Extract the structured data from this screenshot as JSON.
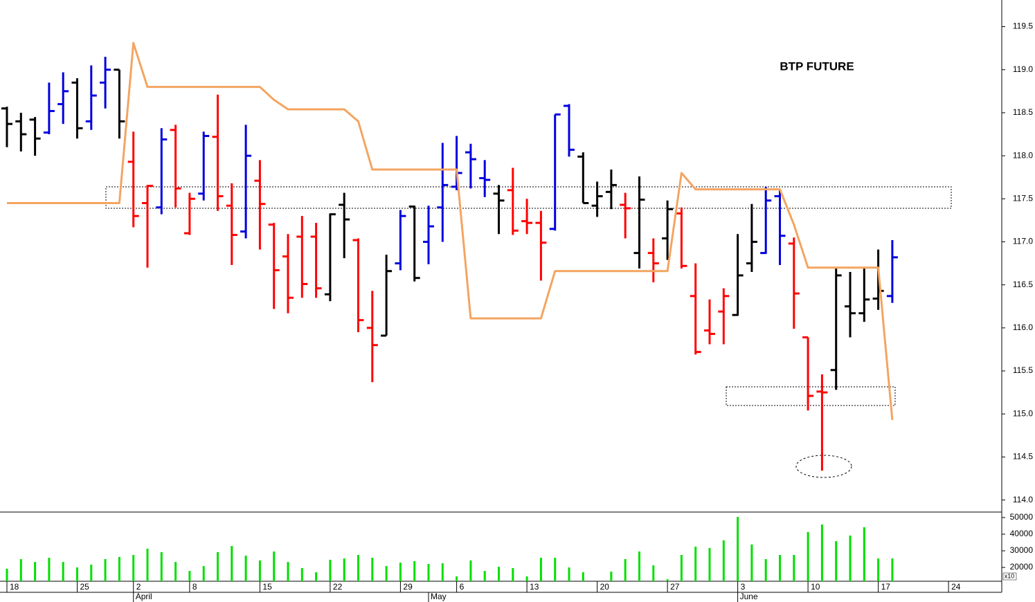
{
  "chart_data": {
    "type": "ohlc",
    "title": "BTP FUTURE",
    "categories": [
      "18",
      null,
      null,
      null,
      null,
      "25",
      null,
      null,
      null,
      "2",
      null,
      null,
      null,
      "8",
      null,
      null,
      null,
      null,
      "15",
      null,
      null,
      null,
      null,
      "22",
      null,
      null,
      null,
      null,
      "29",
      null,
      null,
      null,
      "6",
      null,
      null,
      null,
      null,
      "13",
      null,
      null,
      null,
      null,
      "20",
      null,
      null,
      null,
      null,
      "27",
      null,
      null,
      null,
      null,
      "3",
      null,
      null,
      null,
      null,
      "10",
      null,
      null,
      null,
      null,
      "17",
      null,
      null,
      null,
      null,
      "24"
    ],
    "months": [
      null,
      null,
      null,
      null,
      null,
      null,
      null,
      null,
      null,
      "April",
      null,
      null,
      null,
      null,
      null,
      null,
      null,
      null,
      null,
      null,
      null,
      null,
      null,
      null,
      null,
      null,
      null,
      null,
      null,
      null,
      "May",
      null,
      null,
      null,
      null,
      null,
      null,
      null,
      null,
      null,
      null,
      null,
      null,
      null,
      null,
      null,
      null,
      null,
      null,
      null,
      null,
      null,
      "June",
      null,
      null,
      null,
      null,
      null,
      null,
      null,
      null,
      null,
      null,
      null,
      null,
      null,
      null,
      null
    ],
    "open": [
      118.55,
      118.4,
      118.42,
      118.27,
      118.6,
      118.85,
      118.4,
      118.85,
      119.0,
      117.93,
      117.45,
      117.4,
      118.3,
      117.1,
      117.56,
      118.22,
      117.42,
      117.12,
      117.71,
      117.2,
      116.83,
      117.06,
      117.06,
      116.39,
      117.43,
      117.02,
      116.0,
      115.91,
      116.75,
      117.41,
      117.0,
      117.4,
      117.64,
      118.04,
      117.74,
      117.56,
      117.6,
      117.24,
      117.22,
      117.15,
      118.58,
      117.99,
      117.42,
      117.58,
      117.43,
      116.87,
      116.87,
      117.04,
      117.33,
      116.37,
      115.97,
      116.19,
      116.15,
      116.75,
      116.87,
      117.53,
      116.98,
      115.89,
      115.26,
      115.51,
      116.25,
      116.17,
      116.34,
      116.37,
      null,
      null,
      null,
      null
    ],
    "high": [
      118.57,
      118.5,
      118.45,
      118.85,
      118.97,
      118.9,
      119.05,
      119.15,
      119.0,
      118.28,
      117.66,
      118.32,
      118.36,
      117.57,
      118.28,
      118.71,
      117.68,
      118.36,
      117.95,
      117.22,
      117.09,
      117.3,
      117.22,
      117.33,
      117.57,
      117.04,
      116.43,
      116.85,
      117.37,
      117.42,
      117.42,
      118.15,
      118.23,
      118.14,
      117.95,
      117.66,
      117.86,
      117.5,
      117.36,
      118.48,
      118.6,
      118.04,
      117.7,
      117.84,
      117.57,
      117.76,
      117.04,
      117.48,
      117.4,
      116.75,
      116.33,
      116.46,
      117.09,
      117.44,
      117.64,
      117.6,
      117.05,
      115.89,
      115.46,
      116.71,
      116.65,
      116.69,
      116.91,
      117.02,
      null,
      null,
      null,
      null
    ],
    "low": [
      118.1,
      118.05,
      118.0,
      118.25,
      118.37,
      118.2,
      118.3,
      118.55,
      118.2,
      117.17,
      116.7,
      117.32,
      117.4,
      117.08,
      117.48,
      117.36,
      116.73,
      117.04,
      116.91,
      116.22,
      116.17,
      116.35,
      116.35,
      116.31,
      116.81,
      115.95,
      115.37,
      115.91,
      116.67,
      116.54,
      116.74,
      117.0,
      117.6,
      117.62,
      117.52,
      117.09,
      117.08,
      117.09,
      116.55,
      117.13,
      117.99,
      117.45,
      117.29,
      117.38,
      117.04,
      116.69,
      116.53,
      116.79,
      116.69,
      115.69,
      115.81,
      115.81,
      116.14,
      116.65,
      116.86,
      116.73,
      115.99,
      115.04,
      114.34,
      115.28,
      115.89,
      116.07,
      116.21,
      116.29,
      null,
      null,
      null,
      null
    ],
    "close": [
      118.37,
      118.25,
      118.2,
      118.52,
      118.75,
      118.32,
      118.7,
      119.0,
      118.4,
      117.3,
      117.65,
      118.19,
      117.62,
      117.5,
      118.23,
      117.53,
      117.08,
      118.0,
      117.44,
      116.67,
      116.35,
      116.51,
      116.46,
      117.32,
      117.26,
      116.09,
      115.8,
      116.66,
      117.3,
      116.58,
      117.18,
      117.66,
      117.8,
      117.96,
      117.72,
      117.48,
      117.13,
      117.22,
      116.99,
      118.48,
      118.07,
      117.45,
      117.53,
      117.66,
      117.39,
      117.49,
      116.75,
      117.38,
      116.72,
      115.72,
      115.93,
      116.37,
      116.61,
      117.0,
      117.48,
      117.07,
      116.4,
      115.21,
      115.25,
      116.61,
      116.17,
      116.33,
      116.43,
      116.82,
      null,
      null,
      null,
      null
    ],
    "bar_colors": [
      "#000000",
      "#000000",
      "#000000",
      "#0000dd",
      "#0000dd",
      "#000000",
      "#0000dd",
      "#0000dd",
      "#000000",
      "#ff0000",
      "#ff0000",
      "#0000dd",
      "#ff0000",
      "#ff0000",
      "#0000dd",
      "#ff0000",
      "#ff0000",
      "#0000dd",
      "#ff0000",
      "#ff0000",
      "#ff0000",
      "#ff0000",
      "#ff0000",
      "#000000",
      "#000000",
      "#ff0000",
      "#ff0000",
      "#000000",
      "#0000dd",
      "#000000",
      "#0000dd",
      "#0000dd",
      "#0000dd",
      "#0000dd",
      "#0000dd",
      "#000000",
      "#ff0000",
      "#ff0000",
      "#ff0000",
      "#0000dd",
      "#0000dd",
      "#000000",
      "#000000",
      "#000000",
      "#ff0000",
      "#000000",
      "#ff0000",
      "#000000",
      "#ff0000",
      "#ff0000",
      "#ff0000",
      "#ff0000",
      "#000000",
      "#000000",
      "#0000dd",
      "#0000dd",
      "#ff0000",
      "#ff0000",
      "#ff0000",
      "#000000",
      "#000000",
      "#000000",
      "#000000",
      "#0000dd",
      null,
      null,
      null,
      null
    ],
    "ylim": [
      113.86,
      119.81
    ],
    "yticks": [
      {
        "value": 114,
        "label": "114.0"
      },
      {
        "value": 114.5,
        "label": "114.5"
      },
      {
        "value": 115,
        "label": "115.0"
      },
      {
        "value": 115.5,
        "label": "115.5"
      },
      {
        "value": 116,
        "label": "116.0"
      },
      {
        "value": 116.5,
        "label": "116.5"
      },
      {
        "value": 117,
        "label": "117.0"
      },
      {
        "value": 117.5,
        "label": "117.5"
      },
      {
        "value": 118,
        "label": "118.0"
      },
      {
        "value": 118.5,
        "label": "118.5"
      },
      {
        "value": 119,
        "label": "119.0"
      },
      {
        "value": 119.5,
        "label": "119.5"
      }
    ],
    "overlay": {
      "color": "#f4a460",
      "values": [
        117.45,
        117.45,
        117.45,
        117.45,
        117.45,
        117.45,
        117.45,
        117.45,
        117.45,
        119.31,
        118.8,
        118.8,
        118.8,
        118.8,
        118.8,
        118.8,
        118.8,
        118.8,
        118.8,
        118.65,
        118.54,
        118.54,
        118.54,
        118.54,
        118.54,
        118.4,
        117.84,
        117.84,
        117.84,
        117.84,
        117.84,
        117.84,
        117.84,
        116.11,
        116.11,
        116.11,
        116.11,
        116.11,
        116.11,
        116.66,
        116.66,
        116.66,
        116.66,
        116.66,
        116.66,
        116.66,
        116.66,
        116.66,
        117.8,
        117.61,
        117.61,
        117.61,
        117.61,
        117.61,
        117.61,
        117.61,
        117.2,
        116.7,
        116.7,
        116.7,
        116.7,
        116.7,
        116.7,
        114.93,
        null,
        null,
        null,
        null
      ]
    },
    "volume": {
      "color": "#00e000",
      "unit_label": "x10",
      "values": [
        19200,
        25000,
        23300,
        25800,
        23300,
        20000,
        21700,
        25000,
        26300,
        27500,
        31300,
        29200,
        23300,
        17900,
        20800,
        29200,
        32900,
        27100,
        24200,
        29600,
        23300,
        19600,
        17100,
        24600,
        25400,
        27500,
        25800,
        20800,
        22900,
        23800,
        22100,
        22500,
        14600,
        24200,
        17900,
        20400,
        19600,
        14600,
        25800,
        25800,
        20000,
        17100,
        null,
        17500,
        25000,
        29600,
        21300,
        12900,
        27500,
        32500,
        31700,
        36300,
        50400,
        33800,
        25000,
        27500,
        27500,
        41300,
        45800,
        35800,
        39200,
        44200,
        25400,
        25400,
        null,
        null,
        null,
        null
      ],
      "ylim": [
        11700,
        53300
      ],
      "yticks": [
        20000,
        30000,
        40000,
        50000
      ]
    }
  }
}
